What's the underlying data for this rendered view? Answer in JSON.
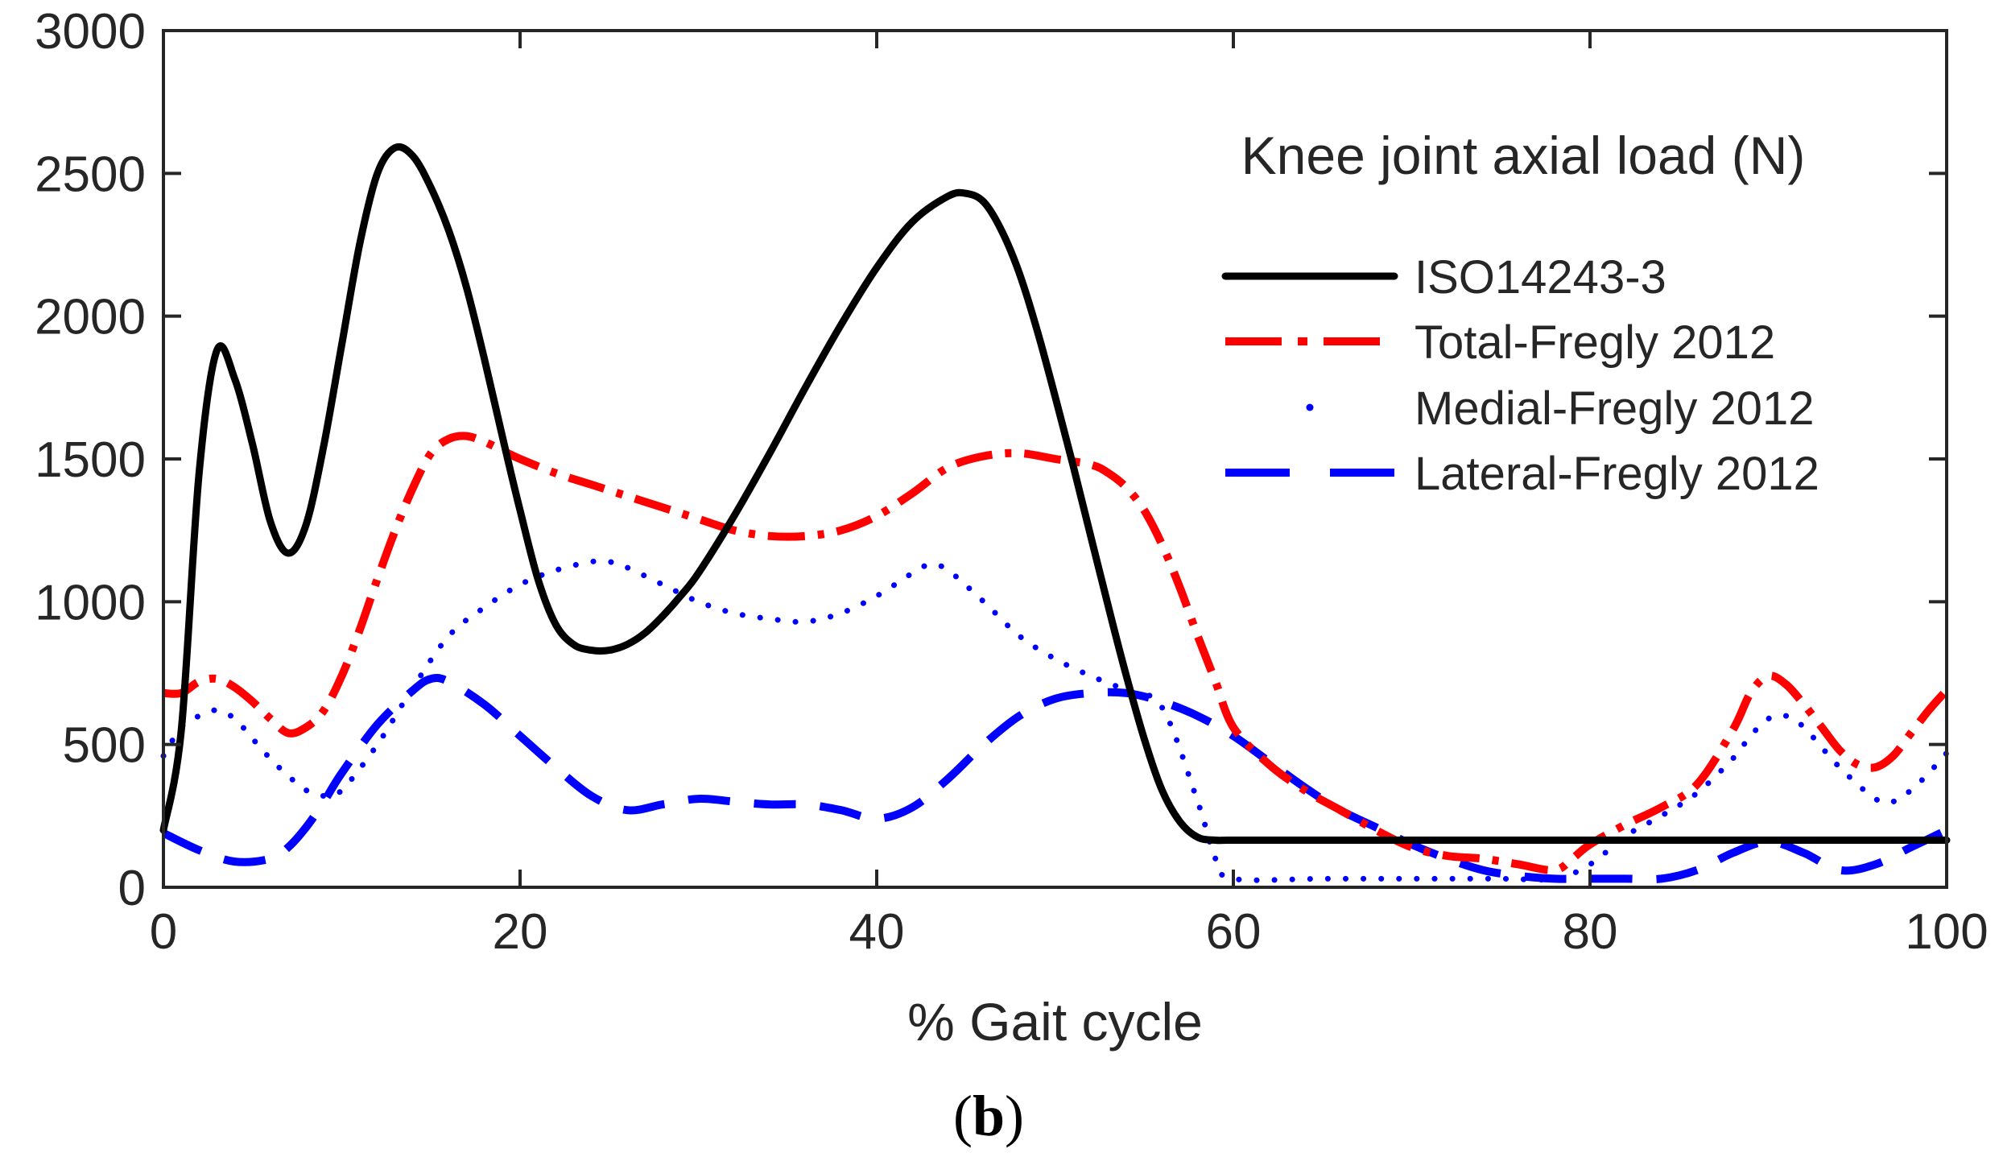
{
  "chart_data": {
    "type": "line",
    "title": "",
    "legend_title": "Knee joint axial load (N)",
    "xlabel": "% Gait cycle",
    "ylabel": "",
    "xlim": [
      0,
      100
    ],
    "ylim": [
      0,
      3000
    ],
    "xticks": [
      0,
      20,
      40,
      60,
      80,
      100
    ],
    "yticks": [
      0,
      500,
      1000,
      1500,
      2000,
      2500,
      3000
    ],
    "grid": false,
    "legend_position": "top-right",
    "subfigure_label": {
      "open": "(",
      "letter": "b",
      "close": ")"
    },
    "series": [
      {
        "name": "ISO14243-3",
        "color": "#000000",
        "style": "solid",
        "x": [
          0,
          1,
          2,
          3,
          4,
          5,
          6,
          7,
          8,
          9,
          10,
          11,
          12,
          13,
          14,
          15,
          16,
          17,
          18,
          19,
          20,
          21,
          22,
          23,
          24,
          25,
          26,
          27,
          28,
          29,
          30,
          32,
          34,
          36,
          38,
          40,
          42,
          44,
          45,
          46,
          47,
          48,
          49,
          50,
          51,
          52,
          53,
          54,
          55,
          56,
          57,
          58,
          59,
          60,
          65,
          70,
          75,
          80,
          85,
          90,
          95,
          100
        ],
        "values": [
          200,
          550,
          1450,
          1880,
          1780,
          1550,
          1280,
          1170,
          1270,
          1550,
          1900,
          2250,
          2500,
          2590,
          2560,
          2450,
          2300,
          2100,
          1850,
          1580,
          1320,
          1080,
          920,
          850,
          830,
          830,
          850,
          890,
          950,
          1020,
          1100,
          1300,
          1520,
          1750,
          1970,
          2170,
          2330,
          2420,
          2430,
          2400,
          2300,
          2150,
          1950,
          1720,
          1480,
          1230,
          980,
          740,
          520,
          340,
          230,
          175,
          165,
          165,
          165,
          165,
          165,
          165,
          165,
          165,
          165,
          165
        ]
      },
      {
        "name": "Total-Fregly 2012",
        "color": "#ff0000",
        "style": "dashdot",
        "x": [
          0,
          1,
          2,
          3,
          4,
          5,
          6,
          7,
          8,
          9,
          10,
          11,
          12,
          13,
          14,
          15,
          16,
          17,
          18,
          19,
          20,
          22,
          24,
          26,
          28,
          30,
          32,
          34,
          36,
          38,
          40,
          42,
          44,
          46,
          48,
          50,
          52,
          53,
          54,
          55,
          56,
          57,
          58,
          59,
          60,
          62,
          64,
          66,
          68,
          70,
          72,
          74,
          76,
          78,
          79,
          80,
          82,
          84,
          86,
          88,
          89,
          90,
          91,
          92,
          93,
          94,
          95,
          96,
          97,
          98,
          99,
          100
        ],
        "values": [
          680,
          680,
          720,
          730,
          700,
          650,
          590,
          540,
          560,
          620,
          740,
          900,
          1080,
          1250,
          1400,
          1520,
          1570,
          1580,
          1560,
          1530,
          1500,
          1450,
          1410,
          1370,
          1330,
          1290,
          1250,
          1230,
          1230,
          1250,
          1300,
          1380,
          1470,
          1510,
          1520,
          1500,
          1480,
          1450,
          1400,
          1320,
          1200,
          1050,
          880,
          720,
          560,
          430,
          340,
          270,
          200,
          140,
          110,
          100,
          80,
          60,
          100,
          150,
          220,
          280,
          360,
          550,
          680,
          740,
          710,
          640,
          560,
          480,
          430,
          420,
          460,
          540,
          620,
          690
        ]
      },
      {
        "name": "Medial-Fregly 2012",
        "color": "#0000ff",
        "style": "dotted",
        "x": [
          0,
          1,
          2,
          3,
          4,
          5,
          6,
          7,
          8,
          9,
          10,
          12,
          14,
          16,
          18,
          20,
          22,
          24,
          25,
          26,
          28,
          30,
          32,
          34,
          36,
          38,
          40,
          42,
          43,
          44,
          46,
          48,
          50,
          52,
          54,
          56,
          58,
          59,
          60,
          65,
          70,
          75,
          78,
          80,
          82,
          84,
          86,
          88,
          89,
          90,
          91,
          92,
          94,
          96,
          97,
          98,
          99,
          100
        ],
        "values": [
          460,
          560,
          600,
          620,
          590,
          520,
          450,
          390,
          340,
          320,
          340,
          500,
          700,
          880,
          980,
          1060,
          1110,
          1140,
          1140,
          1120,
          1060,
          1000,
          960,
          940,
          930,
          960,
          1020,
          1100,
          1130,
          1110,
          1000,
          880,
          800,
          740,
          690,
          630,
          300,
          100,
          30,
          30,
          30,
          30,
          30,
          80,
          180,
          250,
          330,
          450,
          530,
          590,
          600,
          560,
          420,
          310,
          300,
          340,
          400,
          470
        ]
      },
      {
        "name": "Lateral-Fregly 2012",
        "color": "#0000ff",
        "style": "dashed",
        "x": [
          0,
          2,
          4,
          6,
          7,
          8,
          9,
          10,
          12,
          14,
          15,
          16,
          18,
          20,
          22,
          24,
          26,
          28,
          30,
          32,
          34,
          36,
          38,
          40,
          42,
          44,
          46,
          48,
          50,
          52,
          54,
          56,
          58,
          60,
          62,
          64,
          66,
          68,
          70,
          72,
          74,
          76,
          78,
          80,
          82,
          84,
          86,
          88,
          90,
          92,
          94,
          96,
          98,
          100
        ],
        "values": [
          190,
          130,
          90,
          100,
          140,
          210,
          300,
          400,
          570,
          690,
          730,
          720,
          640,
          530,
          420,
          320,
          270,
          290,
          310,
          300,
          290,
          290,
          270,
          240,
          280,
          380,
          500,
          600,
          660,
          680,
          680,
          650,
          600,
          530,
          440,
          350,
          270,
          210,
          150,
          100,
          60,
          40,
          30,
          30,
          30,
          30,
          60,
          120,
          160,
          120,
          60,
          80,
          140,
          200
        ]
      }
    ]
  }
}
